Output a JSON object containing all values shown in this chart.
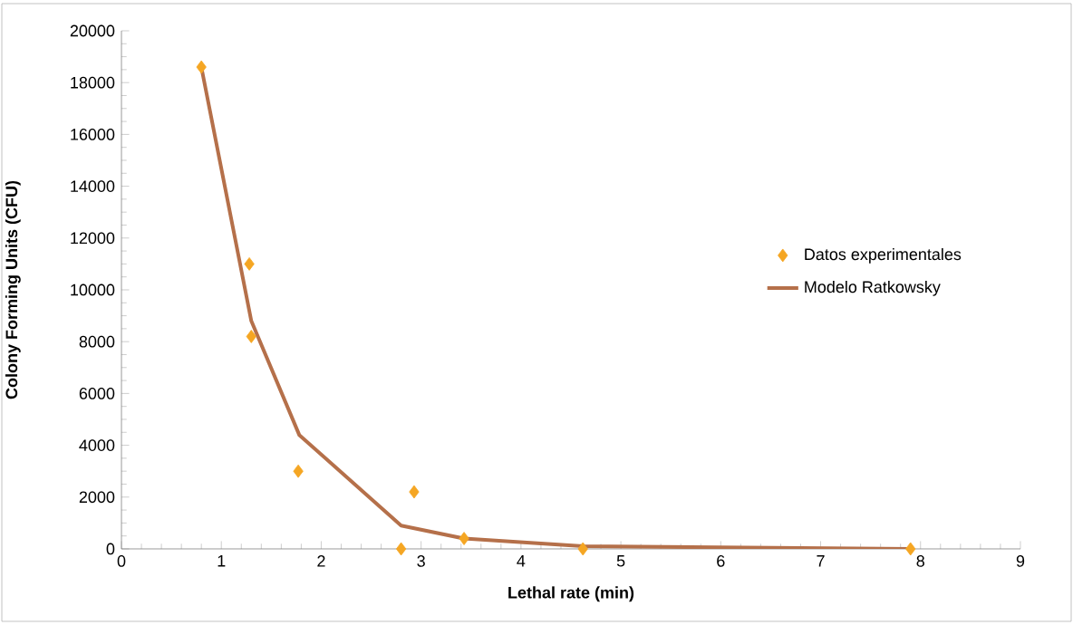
{
  "chart_data": {
    "type": "scatter",
    "xlabel": "Lethal rate (min)",
    "ylabel": "Colony Forming Units (CFU)",
    "xlim": [
      0,
      9
    ],
    "xticks": [
      0,
      1,
      2,
      3,
      4,
      5,
      6,
      7,
      8,
      9
    ],
    "ylim": [
      0,
      20000
    ],
    "yticks": [
      0,
      2000,
      4000,
      6000,
      8000,
      10000,
      12000,
      14000,
      16000,
      18000,
      20000
    ],
    "legend": "right",
    "series": [
      {
        "name": "Datos experimentales",
        "marker": "diamond",
        "color": "#f5a623",
        "x": [
          0.8,
          1.28,
          1.3,
          1.77,
          2.8,
          2.93,
          3.43,
          4.62,
          7.9
        ],
        "values": [
          18600,
          11000,
          8200,
          3000,
          0,
          2200,
          400,
          0,
          0
        ]
      },
      {
        "name": "Modelo Ratkowsky",
        "type": "line",
        "marker": "none",
        "color": "#b5704a",
        "x": [
          0.8,
          1.3,
          1.78,
          2.8,
          3.43,
          4.62,
          7.9
        ],
        "values": [
          18600,
          8800,
          4400,
          900,
          400,
          100,
          0
        ]
      }
    ]
  }
}
